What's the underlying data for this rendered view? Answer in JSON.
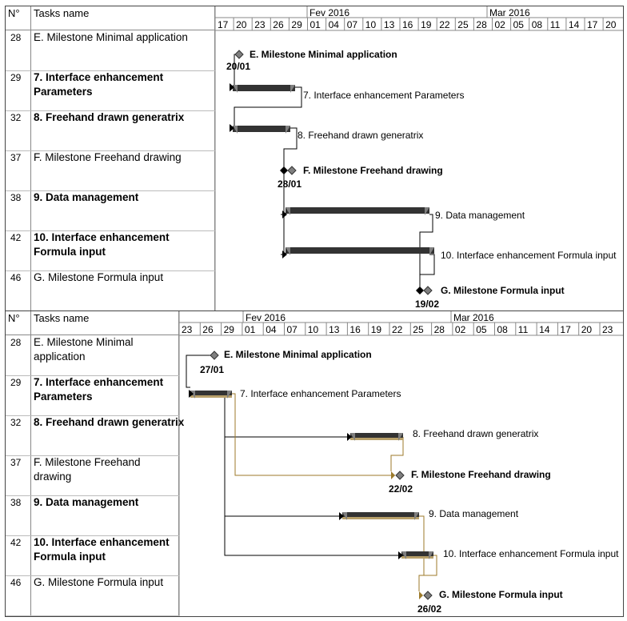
{
  "panels": [
    {
      "header": {
        "num": "N°",
        "name": "Tasks name"
      },
      "timeline": {
        "months": [
          "Fev 2016",
          "Mar 2016"
        ],
        "days": [
          "17",
          "20",
          "23",
          "26",
          "29",
          "01",
          "04",
          "07",
          "10",
          "13",
          "16",
          "19",
          "22",
          "25",
          "28",
          "02",
          "05",
          "08",
          "11",
          "14",
          "17",
          "20"
        ]
      },
      "rows": [
        {
          "num": "28",
          "name": "E. Milestone Minimal application"
        },
        {
          "num": "29",
          "name": "7. Interface enhancement Parameters"
        },
        {
          "num": "32",
          "name": "8. Freehand drawn generatrix"
        },
        {
          "num": "37",
          "name": "F. Milestone Freehand drawing"
        },
        {
          "num": "38",
          "name": "9. Data management"
        },
        {
          "num": "42",
          "name": "10. Interface enhancement Formula input"
        },
        {
          "num": "46",
          "name": "G. Milestone Formula input"
        }
      ],
      "labels": {
        "m1": "E. Milestone Minimal application",
        "m1_date": "20/01",
        "t1": "7. Interface enhancement Parameters",
        "t2": "8. Freehand drawn generatrix",
        "m2": "F. Milestone Freehand drawing",
        "m2_date": "28/01",
        "t3": "9. Data management",
        "t4": "10. Interface enhancement Formula input",
        "m3": "G. Milestone Formula input",
        "m3_date": "19/02"
      }
    },
    {
      "header": {
        "num": "N°",
        "name": "Tasks name"
      },
      "timeline": {
        "months": [
          "Fev 2016",
          "Mar 2016"
        ],
        "days": [
          "23",
          "26",
          "29",
          "01",
          "04",
          "07",
          "10",
          "13",
          "16",
          "19",
          "22",
          "25",
          "28",
          "02",
          "05",
          "08",
          "11",
          "14",
          "17",
          "20",
          "23"
        ]
      },
      "rows": [
        {
          "num": "28",
          "name": "E. Milestone Minimal application"
        },
        {
          "num": "29",
          "name": "7. Interface enhancement Parameters"
        },
        {
          "num": "32",
          "name": "8. Freehand drawn generatrix"
        },
        {
          "num": "37",
          "name": "F. Milestone Freehand drawing"
        },
        {
          "num": "38",
          "name": "9. Data management"
        },
        {
          "num": "42",
          "name": "10. Interface enhancement Formula input"
        },
        {
          "num": "46",
          "name": "G. Milestone Formula input"
        }
      ],
      "labels": {
        "m1": "E. Milestone Minimal application",
        "m1_date": "27/01",
        "t1": "7. Interface enhancement Parameters",
        "t2": "8. Freehand drawn generatrix",
        "m2": "F. Milestone Freehand drawing",
        "m2_date": "22/02",
        "t3": "9. Data management",
        "t4": "10. Interface enhancement Formula input",
        "m3": "G. Milestone Formula input",
        "m3_date": "26/02"
      }
    }
  ],
  "colors": {
    "bar": "#333333",
    "bar_shade": "#7f7f7f",
    "milestone": "#7f7f7f",
    "link": "#000000",
    "critical_link": "#9c7a2a",
    "critical_bar": "#b8a06a"
  }
}
